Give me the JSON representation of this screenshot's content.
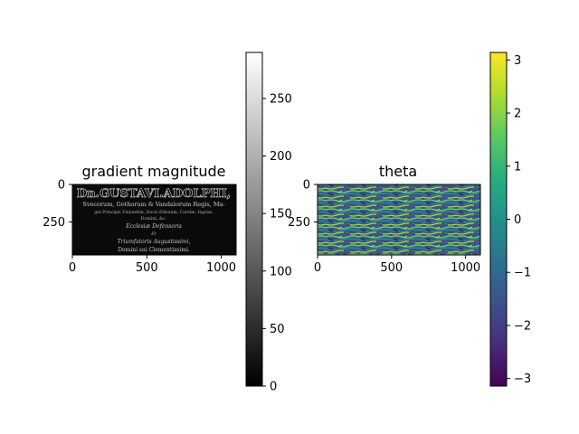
{
  "chart_data": [
    {
      "type": "heatmap",
      "title": "gradient magnitude",
      "colormap": "gray",
      "image_extent": {
        "x": [
          0,
          1100
        ],
        "y": [
          0,
          470
        ]
      },
      "x_ticks": [
        0,
        500,
        1000
      ],
      "y_ticks": [
        0,
        250
      ],
      "colorbar": {
        "range": [
          0,
          290
        ],
        "ticks": [
          0,
          50,
          100,
          150,
          200,
          250
        ]
      },
      "image_text": [
        "Dn.GUSTAVI.ADOLPHI,",
        "Svecorum, Gothorum & Vandalorum Regis, Ma-",
        "gni Principis Finlandiæ, Ducis Ethoniæ, Carelæ, Ingriæ,",
        "Domini, &c.",
        "Ecclesiæ Defensoris",
        "Et",
        "Triumfatoris Augustissimi,",
        "Domini sui Clementissimi."
      ]
    },
    {
      "type": "heatmap",
      "title": "theta",
      "colormap": "viridis",
      "image_extent": {
        "x": [
          0,
          1100
        ],
        "y": [
          0,
          470
        ]
      },
      "x_ticks": [
        0,
        500,
        1000
      ],
      "y_ticks": [
        0,
        250
      ],
      "colorbar": {
        "range": [
          -3.14159,
          3.14159
        ],
        "ticks": [
          3,
          2,
          1,
          0,
          -1,
          -2,
          -3
        ]
      }
    }
  ]
}
